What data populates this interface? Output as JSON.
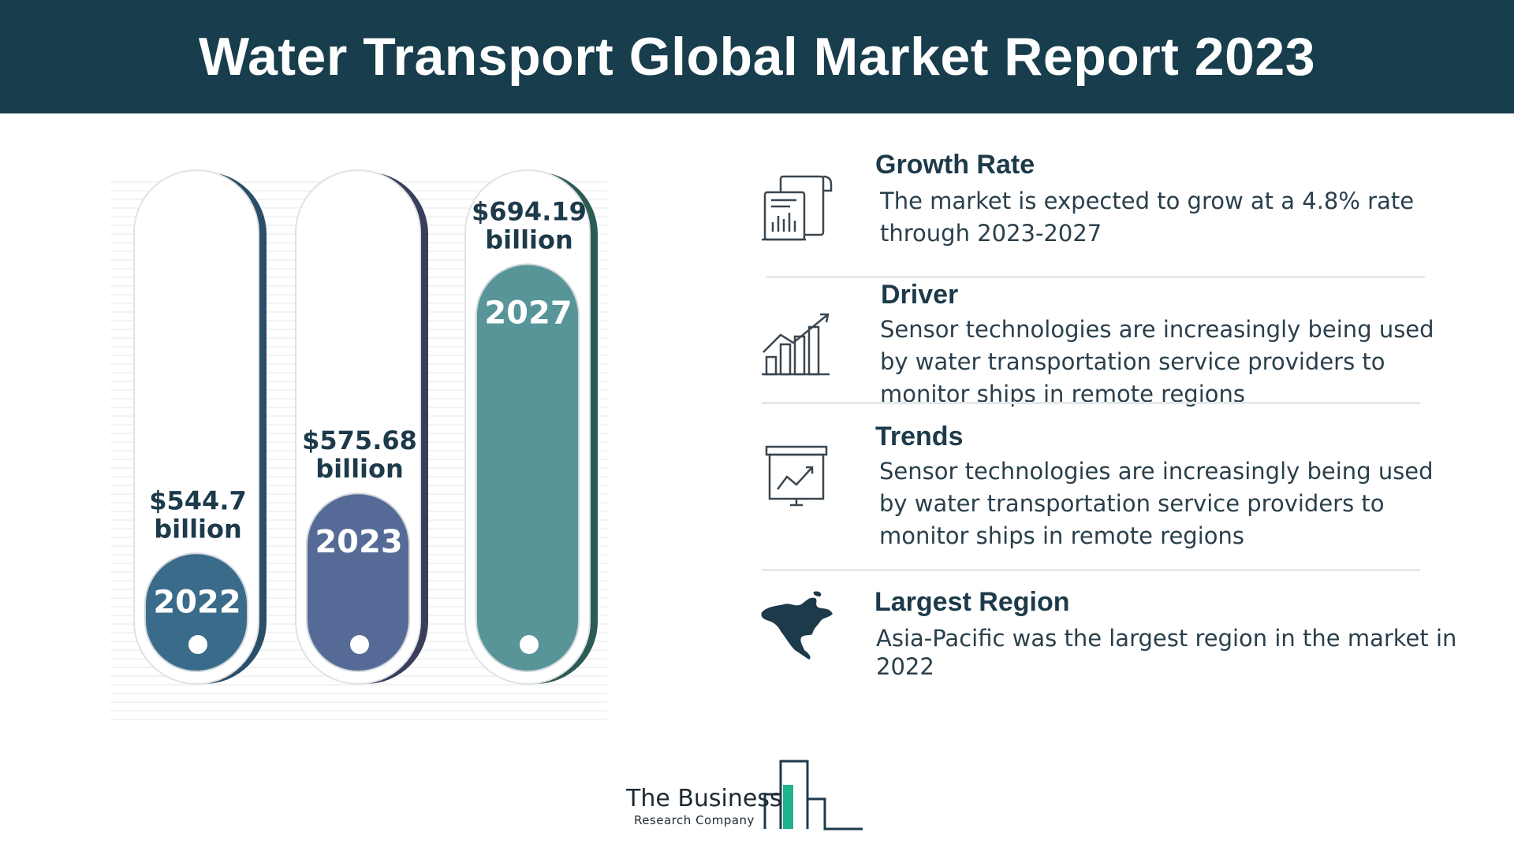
{
  "header": {
    "title": "Water Transport Global Market Report 2023"
  },
  "chart_data": {
    "type": "bar",
    "categories": [
      "2022",
      "2023",
      "2027"
    ],
    "values": [
      544.7,
      575.68,
      694.19
    ],
    "value_labels": [
      "$544.7 billion",
      "$575.68 billion",
      "$694.19 billion"
    ],
    "unit": "billion",
    "colors": [
      "#3b6b8a",
      "#556a96",
      "#579599"
    ],
    "shadow_colors": [
      "#2b4f6a",
      "#3a3e5c",
      "#2c5a55"
    ]
  },
  "info": {
    "growth": {
      "title": "Growth Rate",
      "text": "The market is expected to grow at a 4.8% rate through 2023-2027",
      "icon": "report-document-icon"
    },
    "driver": {
      "title": "Driver",
      "text": "Sensor technologies are increasingly being used by water transportation service providers to monitor ships in remote regions",
      "icon": "growth-bar-chart-icon"
    },
    "trends": {
      "title": "Trends",
      "text": "Sensor technologies are increasingly being used by water transportation service providers to monitor ships in remote regions",
      "icon": "presentation-board-icon"
    },
    "region": {
      "title": "Largest Region",
      "text": "Asia-Pacific was the largest region in the market in 2022",
      "icon": "north-america-map-icon"
    }
  },
  "logo": {
    "line1": "The Business",
    "line2": "Research Company"
  }
}
